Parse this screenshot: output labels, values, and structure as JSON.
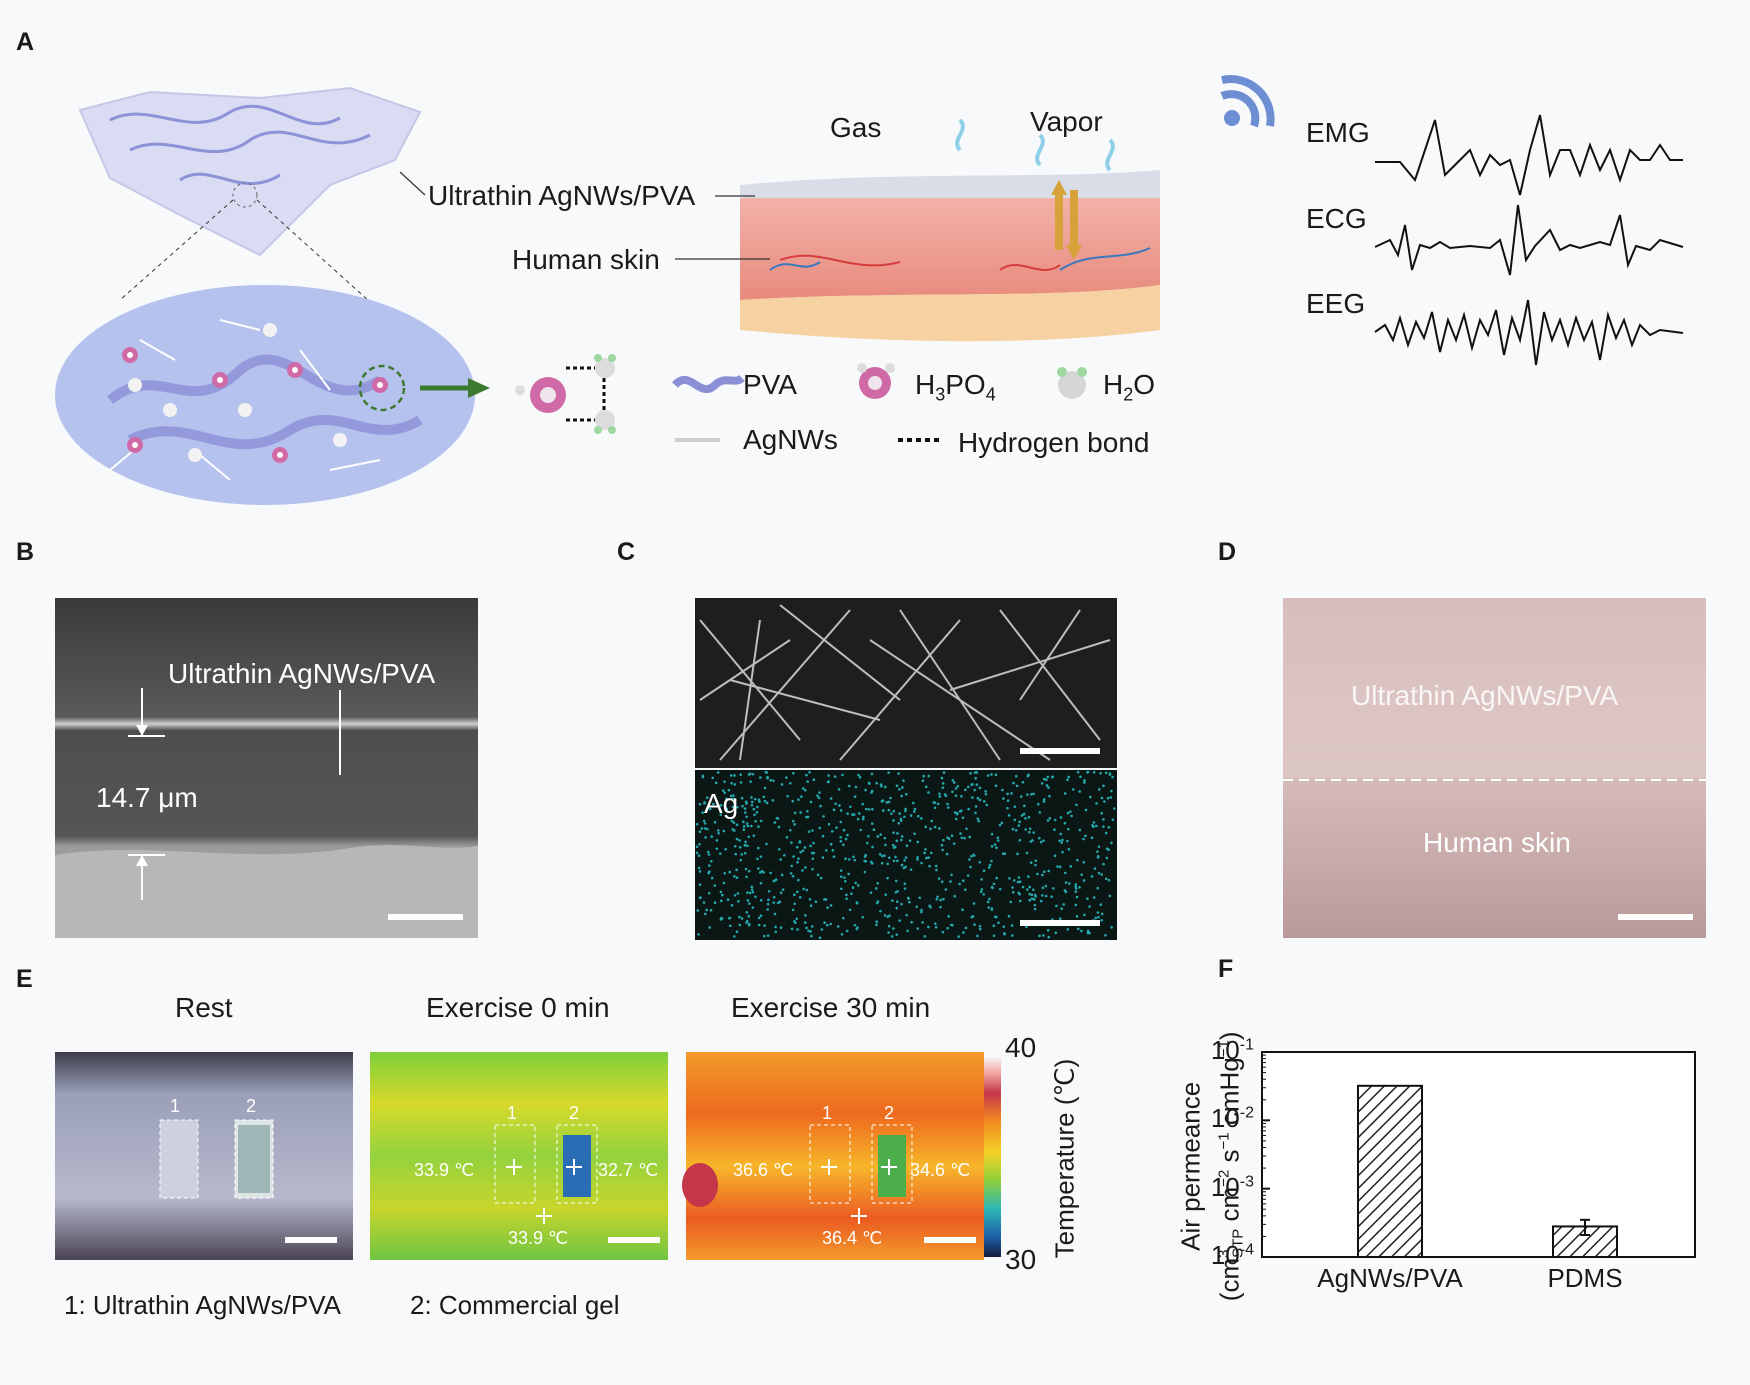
{
  "panels": {
    "A": "A",
    "B": "B",
    "C": "C",
    "D": "D",
    "E": "E",
    "F": "F"
  },
  "panelA": {
    "film_label": "Ultrathin AgNWs/PVA",
    "skin_label": "Human skin",
    "gas": "Gas",
    "vapor": "Vapor",
    "signals": [
      "EMG",
      "ECG",
      "EEG"
    ],
    "legend": {
      "pva": "PVA",
      "h3po4": {
        "base": "H",
        "sub1": "3",
        "mid": "PO",
        "sub2": "4"
      },
      "h2o": {
        "base": "H",
        "sub": "2",
        "end": "O"
      },
      "agnws": "AgNWs",
      "hbond": "Hydrogen bond"
    },
    "colors": {
      "pva": "#8b8fd6",
      "h3po4": "#d06aa6",
      "agnw": "#c8c8c8",
      "skin": "#e89a8c",
      "ellipse": "#b5c2ee"
    }
  },
  "panelB": {
    "film_label": "Ultrathin AgNWs/PVA",
    "thickness": "14.7 μm"
  },
  "panelC": {
    "element_label": "Ag",
    "colors": {
      "map": "#29c3c9"
    }
  },
  "panelD": {
    "film_label": "Ultrathin AgNWs/PVA",
    "skin_label": "Human skin"
  },
  "panelE": {
    "titles": [
      "Rest",
      "Exercise 0 min",
      "Exercise 30 min"
    ],
    "marker_1": "1",
    "marker_2": "2",
    "ex0": {
      "t_left": "33.9 ℃",
      "t_right": "32.7 ℃",
      "t_bottom": "33.9 ℃"
    },
    "ex30": {
      "t_left": "36.6 ℃",
      "t_right": "34.6 ℃",
      "t_bottom": "36.4 ℃"
    },
    "colorbar": {
      "max": "40",
      "min": "30",
      "label": "Temperature (℃)"
    },
    "legend_1": "1: Ultrathin AgNWs/PVA",
    "legend_2": "2: Commercial gel"
  },
  "chart_data": {
    "type": "bar",
    "categories": [
      "AgNWs/PVA",
      "PDMS"
    ],
    "values": [
      0.032,
      0.00028
    ],
    "error": [
      0.0,
      7e-05
    ],
    "ylabel_line1": "Air permeance",
    "ylabel_line2": {
      "open": "(cm",
      "sup": "3",
      "sub": "STP",
      "rest": " cm",
      "sup2": "−2",
      "s": " s",
      "sup3": "−1",
      "c": " cmHg",
      "sup4": "−1",
      "close": ")"
    },
    "yscale": "log",
    "ylim": [
      0.0001,
      0.1
    ],
    "ticks": [
      {
        "base": "10",
        "exp": "-1"
      },
      {
        "base": "10",
        "exp": "-2"
      },
      {
        "base": "10",
        "exp": "-3"
      },
      {
        "base": "10",
        "exp": "-4"
      }
    ],
    "tick_values": [
      0.1,
      0.01,
      0.001,
      0.0001
    ]
  }
}
